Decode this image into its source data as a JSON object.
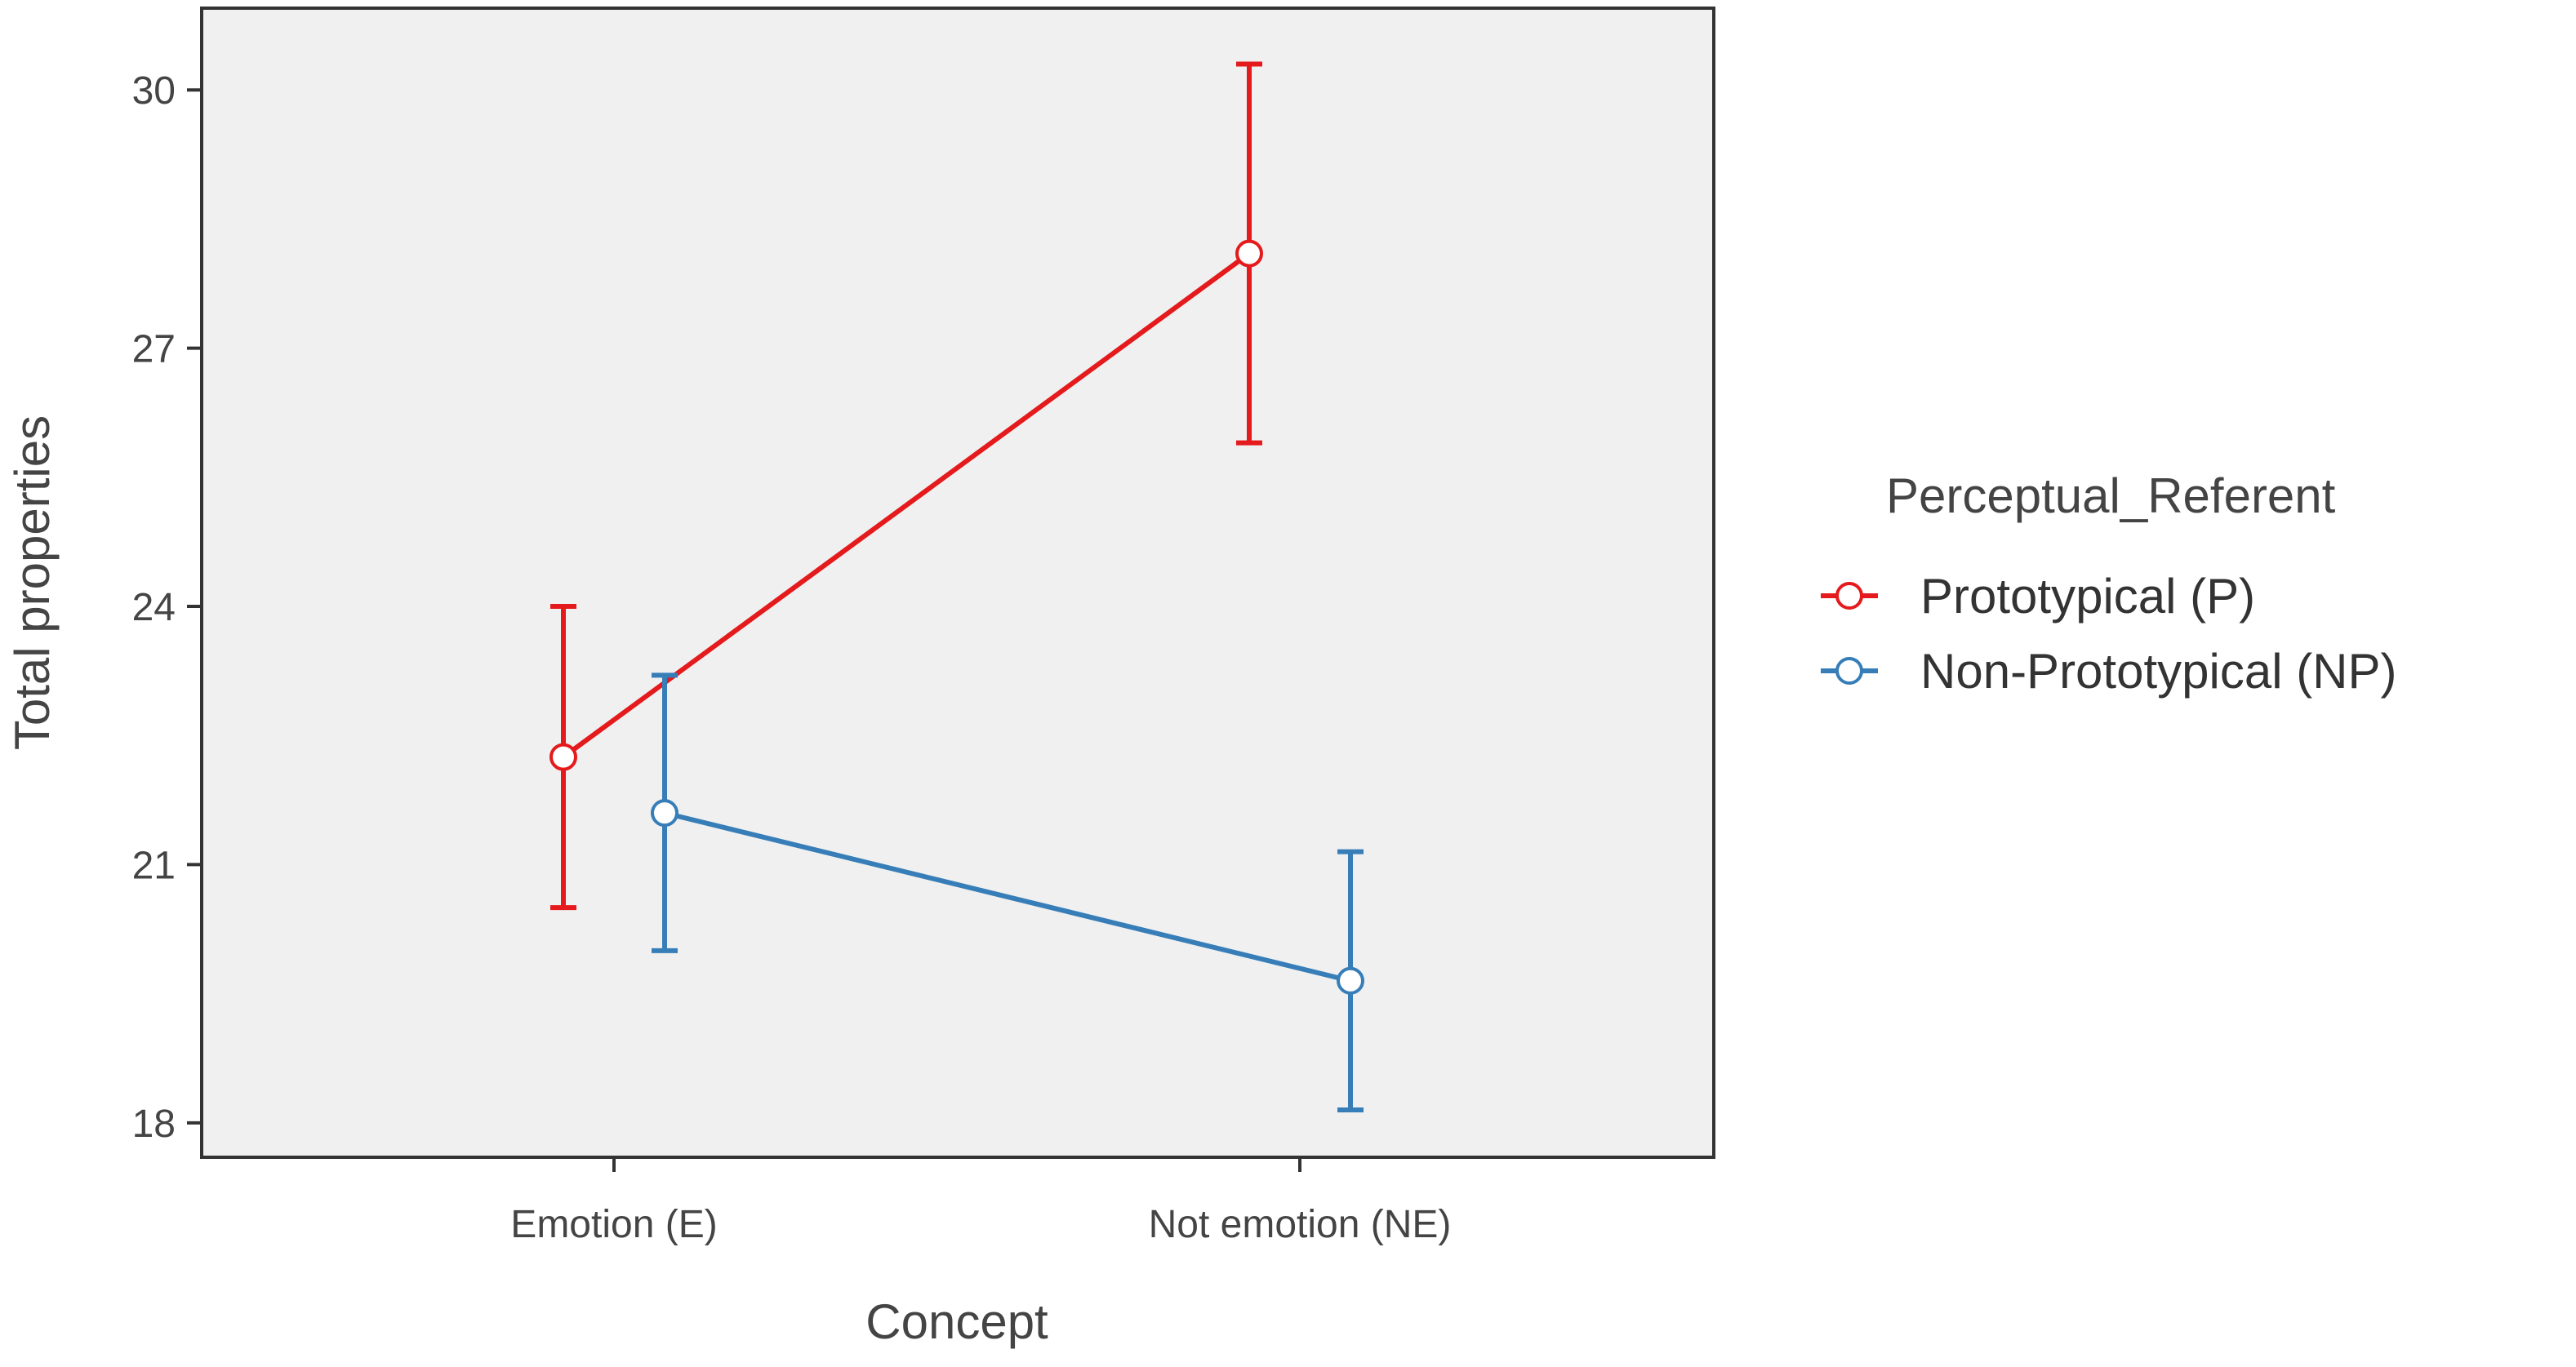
{
  "chart_data": {
    "type": "line",
    "title": "",
    "xlabel": "Concept",
    "ylabel": "Total properties",
    "categories": [
      "Emotion (E)",
      "Not emotion (NE)"
    ],
    "yticks": [
      18,
      21,
      24,
      27,
      30
    ],
    "ylim": [
      17.6,
      30.95
    ],
    "grid": false,
    "legend": {
      "title": "Perceptual_Referent",
      "position": "right"
    },
    "series": [
      {
        "name": "Prototypical (P)",
        "color": "#e41a1c",
        "values": [
          22.25,
          28.1
        ],
        "error_low": [
          20.5,
          25.9
        ],
        "error_high": [
          24.0,
          30.3
        ]
      },
      {
        "name": "Non-Prototypical (NP)",
        "color": "#377eb8",
        "values": [
          21.6,
          19.65
        ],
        "error_low": [
          20.0,
          18.15
        ],
        "error_high": [
          23.2,
          21.15
        ]
      }
    ]
  }
}
